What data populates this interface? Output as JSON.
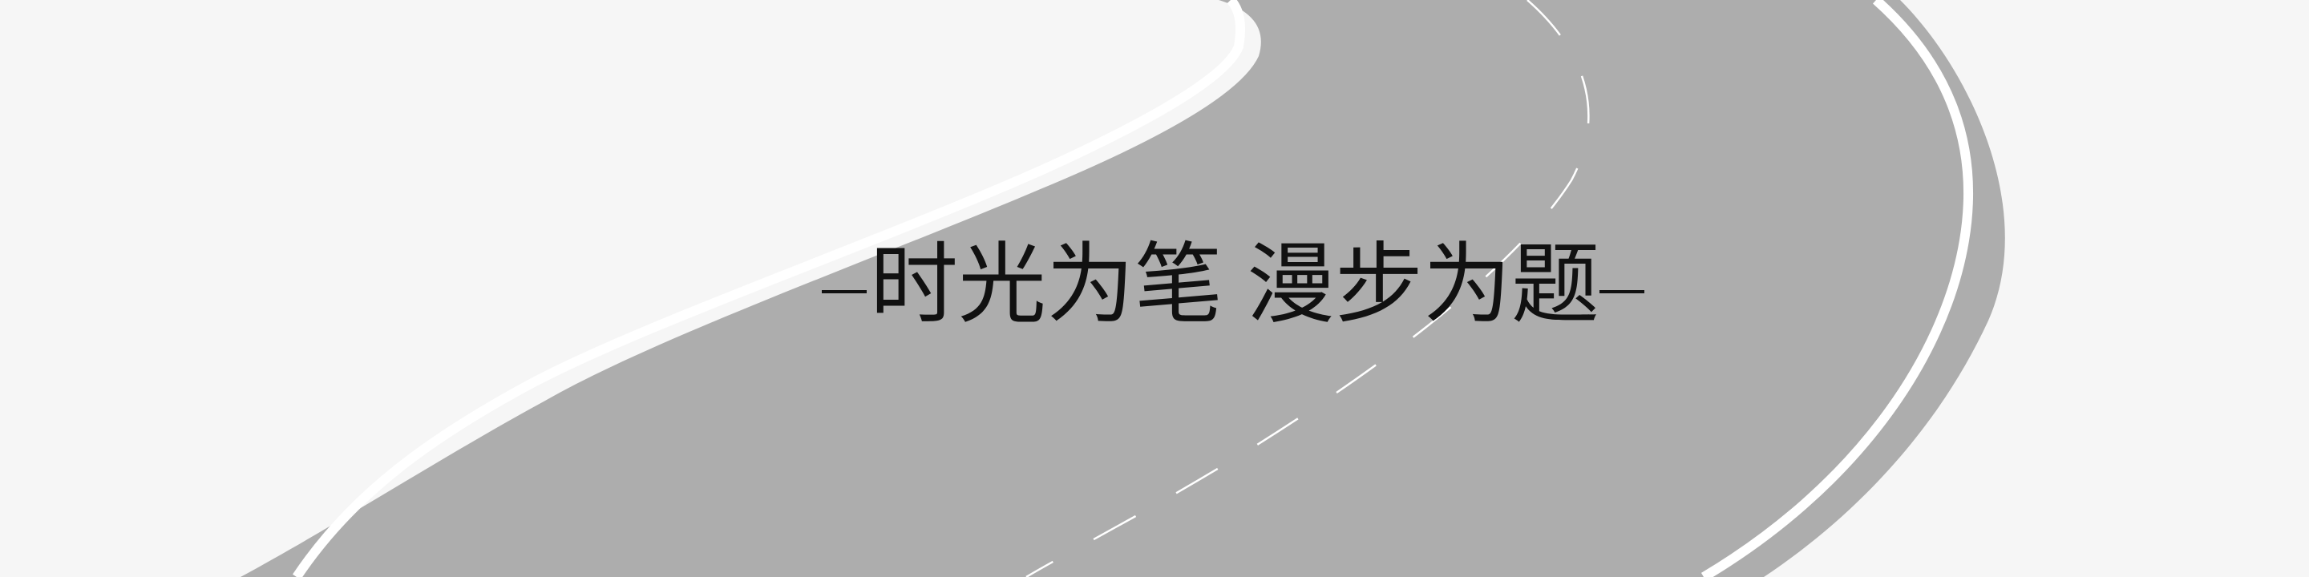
{
  "title": {
    "part1": "时光为笔",
    "part2": "漫步为题"
  },
  "colors": {
    "background": "#f6f6f6",
    "road": "#adadad",
    "lane_marking": "#ffffff",
    "text": "#111111"
  }
}
